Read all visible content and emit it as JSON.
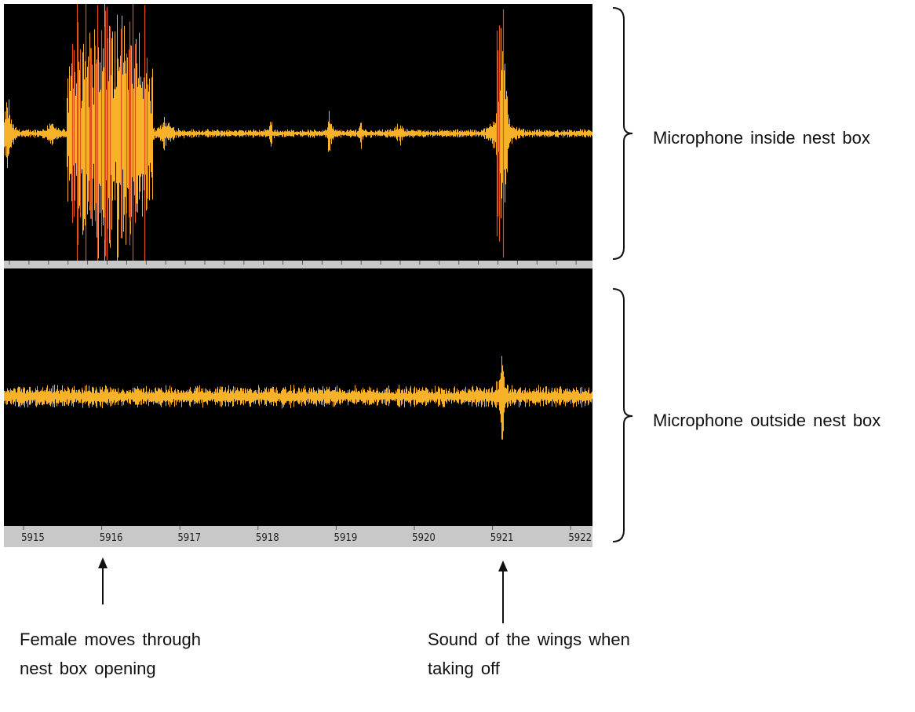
{
  "panels": [
    {
      "label": "Microphone inside nest box"
    },
    {
      "label": "Microphone outside nest box"
    }
  ],
  "time_axis": {
    "ticks": [
      5915,
      5916,
      5917,
      5918,
      5919,
      5920,
      5921,
      5922
    ]
  },
  "annotations": [
    {
      "label": "Female moves through nest box opening"
    },
    {
      "label": "Sound of the wings when taking off"
    }
  ]
}
